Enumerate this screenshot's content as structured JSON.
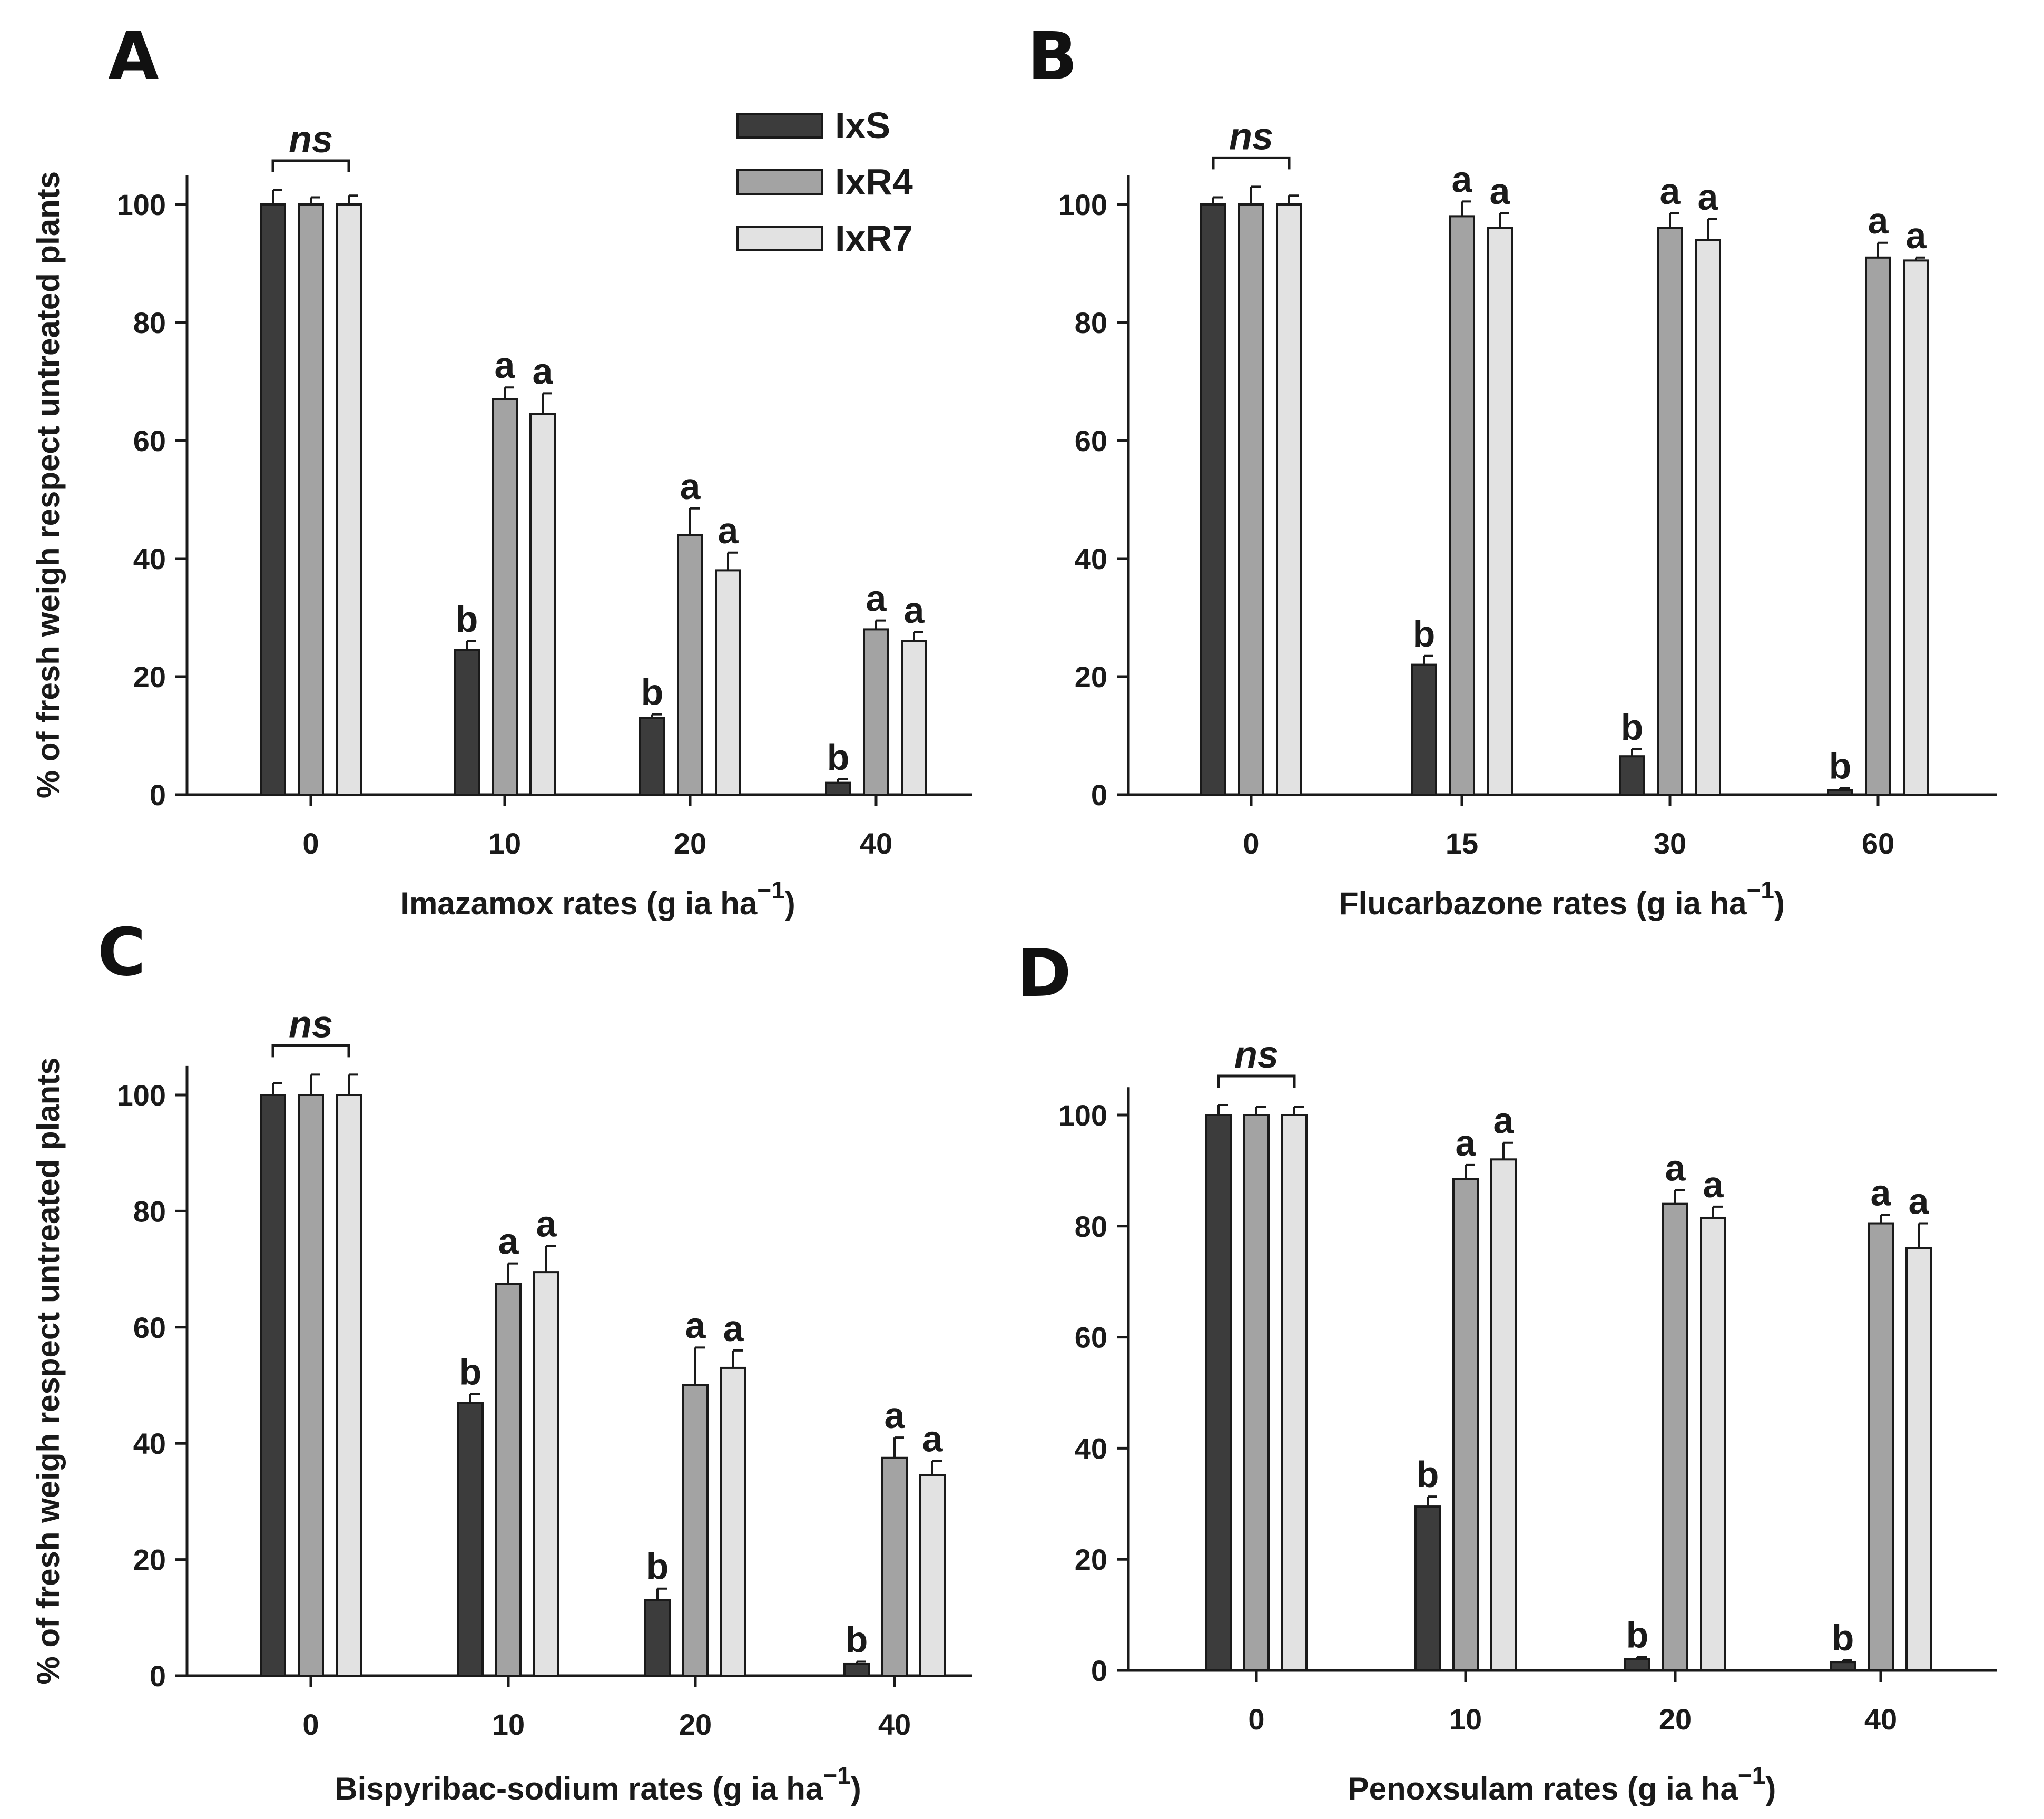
{
  "legend": {
    "entries": [
      {
        "name": "IxS",
        "color": "#3c3c3c"
      },
      {
        "name": "IxR4",
        "color": "#a3a3a3"
      },
      {
        "name": "IxR7",
        "color": "#e2e2e2"
      }
    ]
  },
  "y_axis_label": "% of fresh weigh respect untreated plants",
  "chart_data": [
    {
      "panel": "A",
      "type": "bar",
      "xlabel": "Imazamox rates (g ia ha",
      "xlabel_sup": "−1",
      "xlabel_close": ")",
      "categories": [
        "0",
        "10",
        "20",
        "40"
      ],
      "ylim": [
        0,
        100
      ],
      "yticks": [
        "0",
        "20",
        "40",
        "60",
        "80",
        "100"
      ],
      "series": [
        {
          "name": "IxS",
          "values": [
            100,
            24.5,
            13,
            2
          ],
          "errors": [
            2.5,
            1.5,
            0.6,
            0.6
          ]
        },
        {
          "name": "IxR4",
          "values": [
            100,
            67,
            44,
            28
          ],
          "errors": [
            1.2,
            2,
            4.5,
            1.5
          ]
        },
        {
          "name": "IxR7",
          "values": [
            100,
            64.5,
            38,
            26
          ],
          "errors": [
            1.5,
            3.5,
            3,
            1.5
          ]
        }
      ],
      "letters": [
        [
          "",
          "",
          ""
        ],
        [
          "b",
          "a",
          "a"
        ],
        [
          "b",
          "a",
          "a"
        ],
        [
          "b",
          "a",
          "a"
        ]
      ],
      "ns": "ns"
    },
    {
      "panel": "B",
      "type": "bar",
      "xlabel": "Flucarbazone rates (g ia ha",
      "xlabel_sup": "−1",
      "xlabel_close": ")",
      "categories": [
        "0",
        "15",
        "30",
        "60"
      ],
      "ylim": [
        0,
        100
      ],
      "yticks": [
        "0",
        "20",
        "40",
        "60",
        "80",
        "100"
      ],
      "series": [
        {
          "name": "IxS",
          "values": [
            100,
            22,
            6.5,
            0.8
          ],
          "errors": [
            1.2,
            1.5,
            1.2,
            0.3
          ]
        },
        {
          "name": "IxR4",
          "values": [
            100,
            98,
            96,
            91
          ],
          "errors": [
            3,
            2.5,
            2.5,
            2.5
          ]
        },
        {
          "name": "IxR7",
          "values": [
            100,
            96,
            94,
            90.5
          ],
          "errors": [
            1.5,
            2.5,
            3.5,
            0.5
          ]
        }
      ],
      "letters": [
        [
          "",
          "",
          ""
        ],
        [
          "b",
          "a",
          "a"
        ],
        [
          "b",
          "a",
          "a"
        ],
        [
          "b",
          "a",
          "a"
        ]
      ],
      "ns": "ns"
    },
    {
      "panel": "C",
      "type": "bar",
      "xlabel": "Bispyribac-sodium rates (g ia ha",
      "xlabel_sup": "−1",
      "xlabel_close": ")",
      "categories": [
        "0",
        "10",
        "20",
        "40"
      ],
      "ylim": [
        0,
        100
      ],
      "yticks": [
        "0",
        "20",
        "40",
        "60",
        "80",
        "100"
      ],
      "series": [
        {
          "name": "IxS",
          "values": [
            100,
            47,
            13,
            2
          ],
          "errors": [
            2,
            1.5,
            2,
            0.4
          ]
        },
        {
          "name": "IxR4",
          "values": [
            100,
            67.5,
            50,
            37.5
          ],
          "errors": [
            3.5,
            3.5,
            6.5,
            3.5
          ]
        },
        {
          "name": "IxR7",
          "values": [
            100,
            69.5,
            53,
            34.5
          ],
          "errors": [
            3.5,
            4.5,
            3,
            2.5
          ]
        }
      ],
      "letters": [
        [
          "",
          "",
          ""
        ],
        [
          "b",
          "a",
          "a"
        ],
        [
          "b",
          "a",
          "a"
        ],
        [
          "b",
          "a",
          "a"
        ]
      ],
      "ns": "ns"
    },
    {
      "panel": "D",
      "type": "bar",
      "xlabel": "Penoxsulam rates (g ia ha",
      "xlabel_sup": "−1",
      "xlabel_close": ")",
      "categories": [
        "0",
        "10",
        "20",
        "40"
      ],
      "ylim": [
        0,
        100
      ],
      "yticks": [
        "0",
        "20",
        "40",
        "60",
        "80",
        "100"
      ],
      "series": [
        {
          "name": "IxS",
          "values": [
            100,
            29.5,
            2,
            1.5
          ],
          "errors": [
            1.8,
            1.8,
            0.4,
            0.4
          ]
        },
        {
          "name": "IxR4",
          "values": [
            100,
            88.5,
            84,
            80.5
          ],
          "errors": [
            1.5,
            2.5,
            2.5,
            1.5
          ]
        },
        {
          "name": "IxR7",
          "values": [
            100,
            92,
            81.5,
            76
          ],
          "errors": [
            1.5,
            3,
            2,
            4.5
          ]
        }
      ],
      "letters": [
        [
          "",
          "",
          ""
        ],
        [
          "b",
          "a",
          "a"
        ],
        [
          "b",
          "a",
          "a"
        ],
        [
          "b",
          "a",
          "a"
        ]
      ],
      "ns": "ns"
    }
  ]
}
